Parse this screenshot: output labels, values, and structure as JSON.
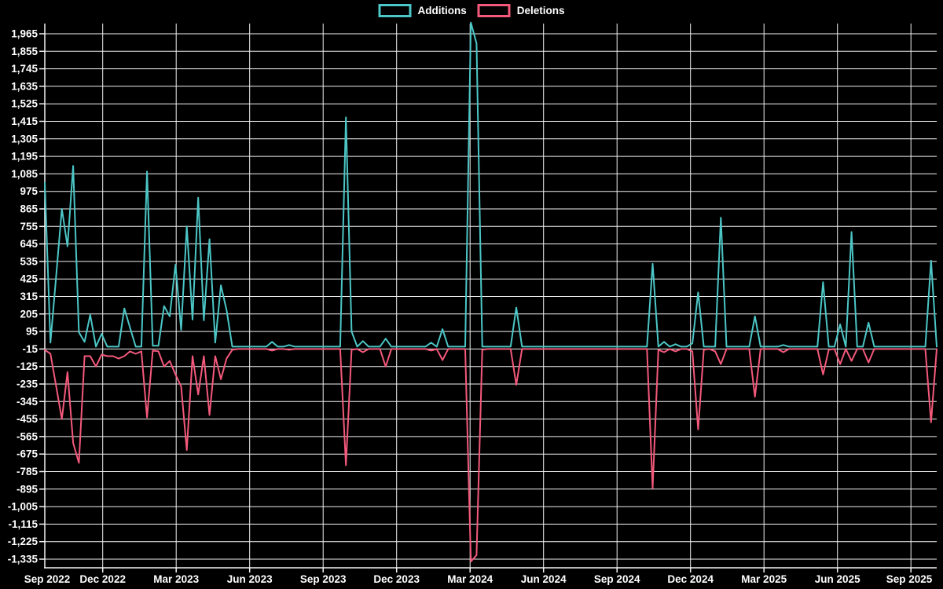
{
  "legend": {
    "items": [
      {
        "label": "Additions",
        "color": "#4cc6c6"
      },
      {
        "label": "Deletions",
        "color": "#f4597b"
      }
    ]
  },
  "chart_data": {
    "type": "line",
    "title": "",
    "background_color": "#000000",
    "grid_color": "#f2f2f2",
    "text_color": "#ffffff",
    "x_axis": {
      "unit": "week",
      "tick_labels": [
        "Sep 2022",
        "Dec 2022",
        "Mar 2023",
        "Jun 2023",
        "Sep 2023",
        "Dec 2023",
        "Mar 2024",
        "Jun 2024",
        "Sep 2024",
        "Dec 2024",
        "Mar 2025",
        "Jun 2025",
        "Sep 2025"
      ]
    },
    "y_axis": {
      "min": -1335,
      "max": 1965,
      "tick_step": 110,
      "tick_labels": [
        "1,965",
        "1,855",
        "1,745",
        "1,635",
        "1,525",
        "1,415",
        "1,305",
        "1,195",
        "1,085",
        "975",
        "865",
        "755",
        "645",
        "535",
        "425",
        "315",
        "205",
        "95",
        "-15",
        "-125",
        "-235",
        "-345",
        "-455",
        "-565",
        "-675",
        "-785",
        "-895",
        "-1,005",
        "-1,115",
        "-1,225",
        "-1,335"
      ]
    },
    "series": [
      {
        "name": "Additions",
        "color": "#4cc6c6",
        "values": [
          1030,
          25,
          445,
          865,
          630,
          1135,
          90,
          30,
          200,
          0,
          80,
          0,
          0,
          0,
          240,
          120,
          0,
          0,
          1100,
          5,
          5,
          255,
          190,
          515,
          105,
          755,
          170,
          935,
          165,
          675,
          25,
          385,
          230,
          0,
          0,
          0,
          0,
          0,
          0,
          0,
          30,
          0,
          0,
          10,
          0,
          0,
          0,
          0,
          0,
          0,
          0,
          0,
          0,
          1440,
          95,
          0,
          35,
          0,
          0,
          0,
          50,
          0,
          0,
          0,
          0,
          0,
          0,
          0,
          25,
          0,
          110,
          0,
          0,
          0,
          0,
          2035,
          1905,
          0,
          0,
          0,
          0,
          0,
          0,
          245,
          0,
          0,
          0,
          0,
          0,
          0,
          0,
          0,
          0,
          0,
          0,
          0,
          0,
          0,
          0,
          0,
          0,
          0,
          0,
          0,
          0,
          0,
          0,
          520,
          0,
          30,
          0,
          15,
          0,
          0,
          20,
          340,
          0,
          0,
          0,
          810,
          0,
          0,
          0,
          0,
          0,
          190,
          0,
          0,
          0,
          0,
          10,
          0,
          0,
          0,
          0,
          0,
          0,
          405,
          0,
          0,
          140,
          0,
          720,
          0,
          0,
          150,
          0,
          0,
          0,
          0,
          0,
          0,
          0,
          0,
          0,
          0,
          540,
          0
        ]
      },
      {
        "name": "Deletions",
        "color": "#f4597b",
        "values": [
          -20,
          -45,
          -250,
          -455,
          -160,
          -605,
          -730,
          -60,
          -60,
          -125,
          -50,
          -60,
          -60,
          -75,
          -60,
          -30,
          -45,
          -30,
          -445,
          -25,
          -30,
          -125,
          -90,
          -175,
          -250,
          -650,
          -60,
          -300,
          -60,
          -430,
          -60,
          -205,
          -75,
          -20,
          -15,
          -15,
          -15,
          -15,
          -15,
          -15,
          -25,
          -15,
          -15,
          -20,
          -15,
          -15,
          -15,
          -15,
          -15,
          -15,
          -15,
          -15,
          -15,
          -745,
          -20,
          -15,
          -35,
          -15,
          -15,
          -15,
          -125,
          -15,
          -15,
          -15,
          -15,
          -15,
          -15,
          -15,
          -25,
          -15,
          -85,
          -15,
          -15,
          -15,
          -15,
          -1350,
          -1310,
          -20,
          -15,
          -15,
          -15,
          -15,
          -15,
          -240,
          -15,
          -15,
          -15,
          -15,
          -15,
          -15,
          -15,
          -15,
          -15,
          -15,
          -15,
          -15,
          -15,
          -15,
          -15,
          -15,
          -15,
          -15,
          -15,
          -15,
          -15,
          -15,
          -15,
          -890,
          -20,
          -35,
          -15,
          -30,
          -15,
          -15,
          -30,
          -520,
          -20,
          -15,
          -30,
          -110,
          -15,
          -15,
          -15,
          -15,
          -15,
          -315,
          -15,
          -15,
          -15,
          -15,
          -35,
          -15,
          -15,
          -15,
          -15,
          -15,
          -15,
          -175,
          -20,
          -15,
          -110,
          -15,
          -90,
          -15,
          -15,
          -100,
          -15,
          -15,
          -15,
          -15,
          -15,
          -15,
          -15,
          -15,
          -15,
          -15,
          -475,
          -15
        ]
      }
    ]
  }
}
